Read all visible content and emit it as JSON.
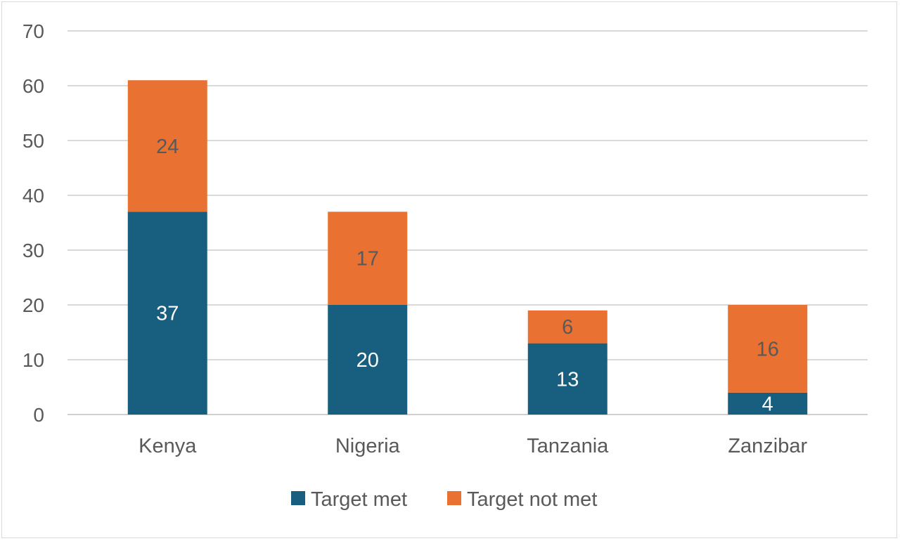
{
  "chart_data": {
    "type": "bar",
    "stacked": true,
    "categories": [
      "Kenya",
      "Nigeria",
      "Tanzania",
      "Zanzibar"
    ],
    "series": [
      {
        "name": "Target met",
        "values": [
          37,
          20,
          13,
          4
        ],
        "color": "#185E7E",
        "label_color": "#ffffff"
      },
      {
        "name": "Target not met",
        "values": [
          24,
          17,
          6,
          16
        ],
        "color": "#E97132",
        "label_color": "#595959"
      }
    ],
    "ylim": [
      0,
      70
    ],
    "yticks": [
      0,
      10,
      20,
      30,
      40,
      50,
      60,
      70
    ],
    "grid": true,
    "legend_position": "bottom",
    "data_labels": true,
    "title": "",
    "xlabel": "",
    "ylabel": ""
  }
}
